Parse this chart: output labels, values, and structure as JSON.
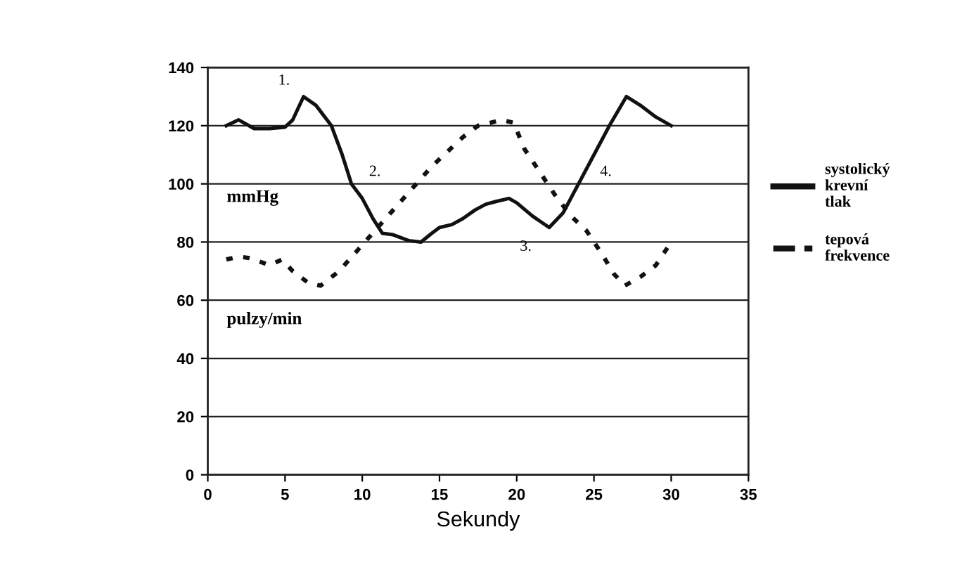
{
  "chart_data": {
    "type": "line",
    "xlabel": "Sekundy",
    "xlim": [
      0,
      35
    ],
    "xticks": [
      0,
      5,
      10,
      15,
      20,
      25,
      30,
      35
    ],
    "ylim": [
      0,
      140
    ],
    "yticks": [
      0,
      20,
      40,
      60,
      80,
      100,
      120,
      140
    ],
    "grid": "y",
    "legend": "right",
    "marker": "none",
    "series": [
      {
        "name": "systolický\nkrevní\ntlak",
        "color": "#111111",
        "line_style": "solid",
        "x": [
          1.2,
          2,
          3,
          4,
          5,
          5.5,
          6.2,
          7,
          8,
          8.7,
          9.3,
          10,
          10.7,
          11.3,
          12,
          13,
          13.8,
          14.5,
          15,
          15.8,
          16.5,
          17.3,
          18,
          18.7,
          19.5,
          20,
          21,
          22.1,
          23,
          24,
          25,
          26,
          27.1,
          28,
          29,
          30
        ],
        "values": [
          120,
          122,
          119,
          119,
          119.5,
          122,
          130,
          127,
          120,
          110,
          100,
          95,
          88,
          83,
          82.5,
          80.5,
          80,
          83,
          85,
          86,
          88,
          91,
          93,
          94,
          95,
          93.5,
          89,
          85,
          90,
          100,
          110,
          120,
          130,
          127,
          123,
          120
        ]
      },
      {
        "name": "tepová\nfrekvence",
        "color": "#111111",
        "line_style": "dotted",
        "x": [
          1.2,
          2,
          2.7,
          3.5,
          4,
          4.8,
          5.5,
          6.5,
          7.3,
          8.5,
          9.5,
          10.5,
          11.5,
          12.5,
          13.5,
          14.5,
          15.5,
          16.5,
          17.5,
          18.3,
          19,
          19.8,
          20.5,
          21.5,
          22.5,
          23.5,
          24.5,
          25.5,
          26.3,
          27,
          28,
          29,
          30
        ],
        "values": [
          74,
          75,
          74.5,
          73,
          72,
          74,
          70,
          66,
          65,
          70,
          76,
          82,
          88,
          94,
          100,
          106,
          111,
          116,
          120,
          121,
          122,
          121,
          112,
          104,
          96,
          89,
          84,
          76,
          69,
          65,
          68,
          72,
          80
        ]
      }
    ],
    "annotations": [
      {
        "text": "1.",
        "x": 6.2,
        "y": 130
      },
      {
        "text": "2.",
        "x": 9.3,
        "y": 100
      },
      {
        "text": "3.",
        "x": 22.1,
        "y": 85
      },
      {
        "text": "4.",
        "x": 24,
        "y": 100
      },
      "mmHg",
      "pulzy/min"
    ]
  }
}
